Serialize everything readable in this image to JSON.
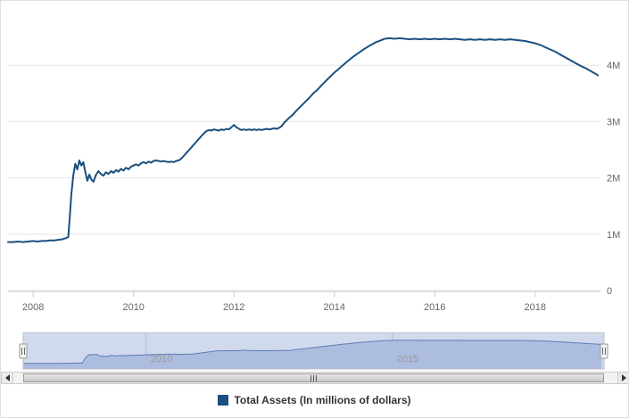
{
  "chart_data": {
    "type": "line",
    "title": "",
    "x_axis": {
      "range": [
        2007.5,
        2019.3
      ],
      "ticks": [
        2008,
        2010,
        2012,
        2014,
        2016,
        2018
      ],
      "grid": false
    },
    "y_axis": {
      "range": [
        0,
        5
      ],
      "ticks": [
        0,
        1,
        2,
        3,
        4
      ],
      "tick_labels": [
        "0",
        "1M",
        "2M",
        "3M",
        "4M"
      ],
      "position": "right",
      "grid": true
    },
    "series": [
      {
        "name": "Total Assets (In millions of dollars)",
        "color": "#1a4f7f",
        "x": [
          2007.5,
          2007.6,
          2007.7,
          2007.8,
          2007.9,
          2008.0,
          2008.08,
          2008.17,
          2008.25,
          2008.33,
          2008.42,
          2008.5,
          2008.58,
          2008.65,
          2008.7,
          2008.73,
          2008.76,
          2008.8,
          2008.84,
          2008.88,
          2008.92,
          2008.96,
          2009.0,
          2009.04,
          2009.08,
          2009.12,
          2009.16,
          2009.2,
          2009.25,
          2009.3,
          2009.35,
          2009.4,
          2009.45,
          2009.5,
          2009.55,
          2009.6,
          2009.65,
          2009.7,
          2009.75,
          2009.8,
          2009.85,
          2009.9,
          2009.95,
          2010.0,
          2010.05,
          2010.1,
          2010.15,
          2010.2,
          2010.25,
          2010.3,
          2010.35,
          2010.4,
          2010.45,
          2010.5,
          2010.55,
          2010.6,
          2010.65,
          2010.7,
          2010.75,
          2010.8,
          2010.85,
          2010.9,
          2010.95,
          2011.0,
          2011.05,
          2011.1,
          2011.15,
          2011.2,
          2011.25,
          2011.3,
          2011.35,
          2011.4,
          2011.45,
          2011.5,
          2011.55,
          2011.6,
          2011.65,
          2011.7,
          2011.75,
          2011.8,
          2011.85,
          2011.9,
          2011.95,
          2012.0,
          2012.05,
          2012.1,
          2012.15,
          2012.2,
          2012.25,
          2012.3,
          2012.35,
          2012.4,
          2012.45,
          2012.5,
          2012.55,
          2012.6,
          2012.65,
          2012.7,
          2012.75,
          2012.8,
          2012.85,
          2012.9,
          2012.95,
          2013.0,
          2013.08,
          2013.17,
          2013.25,
          2013.33,
          2013.42,
          2013.5,
          2013.58,
          2013.67,
          2013.75,
          2013.83,
          2013.92,
          2014.0,
          2014.08,
          2014.17,
          2014.25,
          2014.33,
          2014.42,
          2014.5,
          2014.58,
          2014.67,
          2014.75,
          2014.83,
          2014.92,
          2015.0,
          2015.1,
          2015.2,
          2015.3,
          2015.4,
          2015.5,
          2015.6,
          2015.7,
          2015.8,
          2015.9,
          2016.0,
          2016.1,
          2016.2,
          2016.3,
          2016.4,
          2016.5,
          2016.6,
          2016.7,
          2016.8,
          2016.9,
          2017.0,
          2017.1,
          2017.2,
          2017.3,
          2017.4,
          2017.5,
          2017.6,
          2017.7,
          2017.8,
          2017.9,
          2018.0,
          2018.1,
          2018.2,
          2018.3,
          2018.4,
          2018.5,
          2018.6,
          2018.7,
          2018.8,
          2018.9,
          2019.0,
          2019.1,
          2019.2,
          2019.25
        ],
        "y": [
          0.86,
          0.86,
          0.87,
          0.86,
          0.87,
          0.88,
          0.87,
          0.88,
          0.88,
          0.89,
          0.89,
          0.9,
          0.91,
          0.93,
          0.95,
          1.3,
          1.7,
          2.05,
          2.25,
          2.15,
          2.31,
          2.22,
          2.28,
          2.1,
          1.95,
          2.06,
          1.97,
          1.93,
          2.05,
          2.12,
          2.07,
          2.04,
          2.1,
          2.07,
          2.12,
          2.09,
          2.14,
          2.11,
          2.16,
          2.13,
          2.18,
          2.15,
          2.2,
          2.22,
          2.24,
          2.22,
          2.26,
          2.28,
          2.26,
          2.29,
          2.27,
          2.3,
          2.31,
          2.3,
          2.29,
          2.3,
          2.29,
          2.28,
          2.29,
          2.28,
          2.3,
          2.31,
          2.34,
          2.39,
          2.44,
          2.49,
          2.54,
          2.59,
          2.64,
          2.69,
          2.74,
          2.79,
          2.83,
          2.85,
          2.84,
          2.86,
          2.85,
          2.84,
          2.86,
          2.85,
          2.87,
          2.86,
          2.9,
          2.94,
          2.9,
          2.87,
          2.85,
          2.86,
          2.85,
          2.86,
          2.85,
          2.86,
          2.85,
          2.86,
          2.85,
          2.86,
          2.87,
          2.86,
          2.87,
          2.88,
          2.87,
          2.89,
          2.92,
          2.98,
          3.05,
          3.12,
          3.2,
          3.27,
          3.35,
          3.42,
          3.5,
          3.57,
          3.65,
          3.72,
          3.8,
          3.87,
          3.93,
          4.0,
          4.06,
          4.12,
          4.18,
          4.23,
          4.28,
          4.33,
          4.37,
          4.41,
          4.44,
          4.47,
          4.48,
          4.47,
          4.48,
          4.47,
          4.46,
          4.47,
          4.46,
          4.47,
          4.46,
          4.47,
          4.46,
          4.47,
          4.46,
          4.47,
          4.46,
          4.45,
          4.46,
          4.45,
          4.46,
          4.45,
          4.46,
          4.45,
          4.46,
          4.45,
          4.46,
          4.45,
          4.44,
          4.43,
          4.41,
          4.39,
          4.36,
          4.32,
          4.28,
          4.24,
          4.19,
          4.14,
          4.09,
          4.04,
          3.99,
          3.95,
          3.9,
          3.85,
          3.82
        ]
      }
    ],
    "legend": {
      "position": "bottom",
      "label": "Total Assets (In millions of dollars)",
      "marker_color": "#1a4f7f"
    },
    "navigator": {
      "labels": [
        {
          "text": "2010",
          "value": 2010
        },
        {
          "text": "2015",
          "value": 2015
        }
      ],
      "area_fill": "#ccd6ec",
      "line_color": "#597ab0",
      "mask_fill": "rgba(102,133,194,0.3)",
      "outline_color": "#b9bfc9"
    }
  }
}
